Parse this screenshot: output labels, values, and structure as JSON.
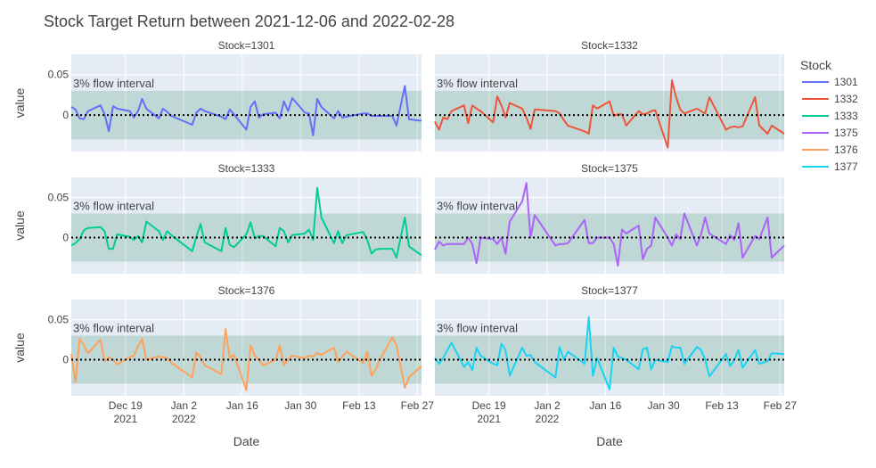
{
  "chart_data": {
    "type": "line",
    "title": "Stock Target Return between 2021-12-06 and 2022-02-28",
    "xlabel": "Date",
    "ylabel": "value",
    "band_label": "3% flow interval",
    "band": [
      -0.03,
      0.03
    ],
    "ylim": [
      -0.045,
      0.075
    ],
    "y_ticks": [
      {
        "value": 0,
        "label": "0"
      },
      {
        "value": 0.05,
        "label": "0.05"
      }
    ],
    "x_range": [
      "2021-12-06",
      "2022-02-28"
    ],
    "x_ticks": [
      {
        "date": "2021-12-19",
        "label": "Dec 19",
        "label2": "2021"
      },
      {
        "date": "2022-01-02",
        "label": "Jan 2",
        "label2": "2022"
      },
      {
        "date": "2022-01-16",
        "label": "Jan 16",
        "label2": ""
      },
      {
        "date": "2022-01-30",
        "label": "Jan 30",
        "label2": ""
      },
      {
        "date": "2022-02-13",
        "label": "Feb 13",
        "label2": ""
      },
      {
        "date": "2022-02-27",
        "label": "Feb 27",
        "label2": ""
      }
    ],
    "legend": {
      "title": "Stock",
      "placement": "right"
    },
    "series": [
      {
        "name": "1301",
        "panel_label": "Stock=1301",
        "color": "#636efa",
        "dates": [
          "2021-12-06",
          "2021-12-07",
          "2021-12-08",
          "2021-12-09",
          "2021-12-10",
          "2021-12-13",
          "2021-12-14",
          "2021-12-15",
          "2021-12-16",
          "2021-12-17",
          "2021-12-20",
          "2021-12-21",
          "2021-12-22",
          "2021-12-23",
          "2021-12-24",
          "2021-12-27",
          "2021-12-28",
          "2021-12-29",
          "2021-12-30",
          "2022-01-04",
          "2022-01-05",
          "2022-01-06",
          "2022-01-07",
          "2022-01-11",
          "2022-01-12",
          "2022-01-13",
          "2022-01-14",
          "2022-01-17",
          "2022-01-18",
          "2022-01-19",
          "2022-01-20",
          "2022-01-21",
          "2022-01-24",
          "2022-01-25",
          "2022-01-26",
          "2022-01-27",
          "2022-01-28",
          "2022-01-31",
          "2022-02-01",
          "2022-02-02",
          "2022-02-03",
          "2022-02-04",
          "2022-02-07",
          "2022-02-08",
          "2022-02-09",
          "2022-02-10",
          "2022-02-14",
          "2022-02-15",
          "2022-02-16",
          "2022-02-17",
          "2022-02-18",
          "2022-02-21",
          "2022-02-22",
          "2022-02-24",
          "2022-02-25",
          "2022-02-28"
        ],
        "values": [
          0.01,
          0.007,
          -0.004,
          -0.005,
          0.005,
          0.012,
          0.001,
          -0.02,
          0.011,
          0.008,
          0.005,
          -0.003,
          0.005,
          0.02,
          0.008,
          -0.004,
          0.008,
          0.004,
          -0.001,
          -0.012,
          0.003,
          0.008,
          0.005,
          -0.002,
          -0.005,
          0.007,
          0.001,
          -0.018,
          0.01,
          0.017,
          -0.003,
          0.001,
          0.003,
          -0.004,
          0.017,
          0.005,
          0.021,
          0.003,
          0.002,
          -0.025,
          0.02,
          0.01,
          -0.004,
          0.005,
          -0.003,
          -0.002,
          0.002,
          0.002,
          -0.001,
          -0.001,
          -0.001,
          -0.001,
          -0.013,
          0.036,
          -0.005,
          -0.007
        ]
      },
      {
        "name": "1332",
        "panel_label": "Stock=1332",
        "color": "#EF553B",
        "dates": [
          "2021-12-06",
          "2021-12-07",
          "2021-12-08",
          "2021-12-09",
          "2021-12-10",
          "2021-12-13",
          "2021-12-14",
          "2021-12-15",
          "2021-12-16",
          "2021-12-17",
          "2021-12-20",
          "2021-12-21",
          "2021-12-22",
          "2021-12-23",
          "2021-12-24",
          "2021-12-27",
          "2021-12-28",
          "2021-12-29",
          "2021-12-30",
          "2022-01-04",
          "2022-01-05",
          "2022-01-06",
          "2022-01-07",
          "2022-01-11",
          "2022-01-12",
          "2022-01-13",
          "2022-01-14",
          "2022-01-17",
          "2022-01-18",
          "2022-01-19",
          "2022-01-20",
          "2022-01-21",
          "2022-01-24",
          "2022-01-25",
          "2022-01-26",
          "2022-01-27",
          "2022-01-28",
          "2022-01-31",
          "2022-02-01",
          "2022-02-02",
          "2022-02-03",
          "2022-02-04",
          "2022-02-07",
          "2022-02-08",
          "2022-02-09",
          "2022-02-10",
          "2022-02-14",
          "2022-02-15",
          "2022-02-16",
          "2022-02-17",
          "2022-02-18",
          "2022-02-21",
          "2022-02-22",
          "2022-02-24",
          "2022-02-25",
          "2022-02-28"
        ],
        "values": [
          -0.008,
          -0.018,
          -0.003,
          -0.005,
          0.005,
          0.012,
          -0.01,
          0.012,
          0.008,
          0.005,
          -0.009,
          0.023,
          0.012,
          -0.003,
          0.015,
          0.008,
          -0.003,
          -0.017,
          0.007,
          0.005,
          0.002,
          -0.006,
          -0.013,
          -0.02,
          -0.023,
          0.012,
          0.008,
          0.017,
          -0.001,
          0.001,
          0.001,
          -0.013,
          0.005,
          0.001,
          0.002,
          0.005,
          0.006,
          -0.04,
          0.043,
          0.022,
          0.007,
          0.002,
          0.008,
          0.005,
          0.002,
          0.022,
          -0.018,
          -0.015,
          -0.014,
          -0.015,
          -0.014,
          0.022,
          -0.013,
          -0.023,
          -0.013,
          -0.023
        ]
      },
      {
        "name": "1333",
        "panel_label": "Stock=1333",
        "color": "#00cc96",
        "dates": [
          "2021-12-06",
          "2021-12-07",
          "2021-12-08",
          "2021-12-09",
          "2021-12-10",
          "2021-12-13",
          "2021-12-14",
          "2021-12-15",
          "2021-12-16",
          "2021-12-17",
          "2021-12-20",
          "2021-12-21",
          "2021-12-22",
          "2021-12-23",
          "2021-12-24",
          "2021-12-27",
          "2021-12-28",
          "2021-12-29",
          "2021-12-30",
          "2022-01-04",
          "2022-01-05",
          "2022-01-06",
          "2022-01-07",
          "2022-01-11",
          "2022-01-12",
          "2022-01-13",
          "2022-01-14",
          "2022-01-17",
          "2022-01-18",
          "2022-01-19",
          "2022-01-20",
          "2022-01-21",
          "2022-01-24",
          "2022-01-25",
          "2022-01-26",
          "2022-01-27",
          "2022-01-28",
          "2022-01-31",
          "2022-02-01",
          "2022-02-02",
          "2022-02-03",
          "2022-02-04",
          "2022-02-07",
          "2022-02-08",
          "2022-02-09",
          "2022-02-10",
          "2022-02-14",
          "2022-02-15",
          "2022-02-16",
          "2022-02-17",
          "2022-02-18",
          "2022-02-21",
          "2022-02-22",
          "2022-02-24",
          "2022-02-25",
          "2022-02-28"
        ],
        "values": [
          -0.01,
          -0.007,
          -0.002,
          0.009,
          0.012,
          0.013,
          0.008,
          -0.014,
          -0.014,
          0.004,
          0.001,
          -0.003,
          0.002,
          -0.006,
          0.02,
          0.008,
          -0.003,
          0.008,
          0.003,
          -0.017,
          0.001,
          0.017,
          -0.006,
          -0.017,
          0.012,
          -0.009,
          -0.012,
          0.004,
          0.019,
          -0.001,
          0.002,
          0.002,
          -0.011,
          0.012,
          0.008,
          -0.006,
          0.003,
          0.005,
          0.01,
          -0.003,
          0.062,
          0.025,
          -0.007,
          0.008,
          -0.007,
          0.003,
          0.007,
          -0.003,
          -0.02,
          -0.015,
          -0.014,
          -0.014,
          -0.025,
          0.025,
          -0.011,
          -0.022
        ]
      },
      {
        "name": "1375",
        "panel_label": "Stock=1375",
        "color": "#ab63fa",
        "dates": [
          "2021-12-06",
          "2021-12-07",
          "2021-12-08",
          "2021-12-09",
          "2021-12-10",
          "2021-12-13",
          "2021-12-14",
          "2021-12-15",
          "2021-12-16",
          "2021-12-17",
          "2021-12-20",
          "2021-12-21",
          "2021-12-22",
          "2021-12-23",
          "2021-12-24",
          "2021-12-27",
          "2021-12-28",
          "2021-12-29",
          "2021-12-30",
          "2022-01-04",
          "2022-01-05",
          "2022-01-06",
          "2022-01-07",
          "2022-01-11",
          "2022-01-12",
          "2022-01-13",
          "2022-01-14",
          "2022-01-17",
          "2022-01-18",
          "2022-01-19",
          "2022-01-20",
          "2022-01-21",
          "2022-01-24",
          "2022-01-25",
          "2022-01-26",
          "2022-01-27",
          "2022-01-28",
          "2022-01-31",
          "2022-02-01",
          "2022-02-02",
          "2022-02-03",
          "2022-02-04",
          "2022-02-07",
          "2022-02-08",
          "2022-02-09",
          "2022-02-10",
          "2022-02-14",
          "2022-02-15",
          "2022-02-16",
          "2022-02-17",
          "2022-02-18",
          "2022-02-21",
          "2022-02-22",
          "2022-02-24",
          "2022-02-25",
          "2022-02-28"
        ],
        "values": [
          -0.015,
          -0.005,
          -0.01,
          -0.008,
          -0.008,
          -0.008,
          0.0,
          -0.008,
          -0.032,
          0.0,
          -0.002,
          -0.008,
          0.0,
          -0.02,
          0.02,
          0.045,
          0.068,
          0.0,
          0.028,
          -0.01,
          -0.008,
          -0.008,
          -0.007,
          0.022,
          -0.007,
          -0.007,
          0.0,
          0.0,
          -0.008,
          -0.035,
          0.01,
          0.005,
          0.015,
          -0.027,
          -0.014,
          -0.01,
          0.025,
          0.0,
          -0.01,
          0.004,
          -0.002,
          0.03,
          -0.01,
          0.004,
          0.025,
          0.005,
          -0.008,
          0.003,
          -0.003,
          0.018,
          -0.025,
          0.002,
          -0.002,
          0.025,
          -0.025,
          -0.01
        ]
      },
      {
        "name": "1376",
        "panel_label": "Stock=1376",
        "color": "#FFA15A",
        "dates": [
          "2021-12-06",
          "2021-12-07",
          "2021-12-08",
          "2021-12-09",
          "2021-12-10",
          "2021-12-13",
          "2021-12-14",
          "2021-12-15",
          "2021-12-16",
          "2021-12-17",
          "2021-12-20",
          "2021-12-21",
          "2021-12-22",
          "2021-12-23",
          "2021-12-24",
          "2021-12-27",
          "2021-12-28",
          "2021-12-29",
          "2021-12-30",
          "2022-01-04",
          "2022-01-05",
          "2022-01-06",
          "2022-01-07",
          "2022-01-11",
          "2022-01-12",
          "2022-01-13",
          "2022-01-14",
          "2022-01-17",
          "2022-01-18",
          "2022-01-19",
          "2022-01-20",
          "2022-01-21",
          "2022-01-24",
          "2022-01-25",
          "2022-01-26",
          "2022-01-27",
          "2022-01-28",
          "2022-01-31",
          "2022-02-01",
          "2022-02-02",
          "2022-02-03",
          "2022-02-04",
          "2022-02-07",
          "2022-02-08",
          "2022-02-09",
          "2022-02-10",
          "2022-02-14",
          "2022-02-15",
          "2022-02-16",
          "2022-02-17",
          "2022-02-18",
          "2022-02-21",
          "2022-02-22",
          "2022-02-24",
          "2022-02-25",
          "2022-02-28"
        ],
        "values": [
          0.007,
          -0.028,
          0.026,
          0.018,
          0.008,
          0.025,
          -0.002,
          0.003,
          0.0,
          -0.006,
          0.003,
          0.005,
          0.017,
          0.026,
          0.0,
          0.004,
          0.003,
          0.002,
          -0.004,
          -0.022,
          0.009,
          0.003,
          -0.007,
          -0.018,
          0.038,
          0.002,
          0.006,
          -0.038,
          0.018,
          0.005,
          0.0,
          -0.007,
          0.0,
          0.018,
          -0.007,
          0.0,
          0.005,
          0.002,
          0.005,
          0.004,
          0.008,
          0.006,
          0.015,
          -0.003,
          0.004,
          0.01,
          -0.004,
          0.01,
          -0.02,
          -0.012,
          0.0,
          0.028,
          0.018,
          -0.035,
          -0.022,
          -0.008
        ]
      },
      {
        "name": "1377",
        "panel_label": "Stock=1377",
        "color": "#19d3f3",
        "dates": [
          "2021-12-06",
          "2021-12-07",
          "2021-12-08",
          "2021-12-09",
          "2021-12-10",
          "2021-12-13",
          "2021-12-14",
          "2021-12-15",
          "2021-12-16",
          "2021-12-17",
          "2021-12-20",
          "2021-12-21",
          "2021-12-22",
          "2021-12-23",
          "2021-12-24",
          "2021-12-27",
          "2021-12-28",
          "2021-12-29",
          "2021-12-30",
          "2022-01-04",
          "2022-01-05",
          "2022-01-06",
          "2022-01-07",
          "2022-01-11",
          "2022-01-12",
          "2022-01-13",
          "2022-01-14",
          "2022-01-17",
          "2022-01-18",
          "2022-01-19",
          "2022-01-20",
          "2022-01-21",
          "2022-01-24",
          "2022-01-25",
          "2022-01-26",
          "2022-01-27",
          "2022-01-28",
          "2022-01-31",
          "2022-02-01",
          "2022-02-02",
          "2022-02-03",
          "2022-02-04",
          "2022-02-07",
          "2022-02-08",
          "2022-02-09",
          "2022-02-10",
          "2022-02-14",
          "2022-02-15",
          "2022-02-16",
          "2022-02-17",
          "2022-02-18",
          "2022-02-21",
          "2022-02-22",
          "2022-02-24",
          "2022-02-25",
          "2022-02-28"
        ],
        "values": [
          0.002,
          -0.005,
          0.002,
          0.012,
          0.021,
          -0.009,
          -0.003,
          -0.013,
          0.015,
          0.005,
          -0.005,
          -0.007,
          0.02,
          0.012,
          -0.02,
          0.015,
          0.005,
          0.006,
          -0.003,
          -0.022,
          0.016,
          0.0,
          0.01,
          -0.005,
          0.053,
          -0.02,
          0.002,
          -0.037,
          0.015,
          0.004,
          0.002,
          0.0,
          -0.012,
          0.013,
          0.015,
          -0.012,
          0.0,
          -0.003,
          0.017,
          0.015,
          0.015,
          -0.005,
          0.016,
          0.012,
          0.0,
          -0.021,
          0.007,
          -0.008,
          0.0,
          0.012,
          -0.01,
          0.012,
          -0.005,
          -0.002,
          0.008,
          0.007
        ]
      }
    ]
  }
}
